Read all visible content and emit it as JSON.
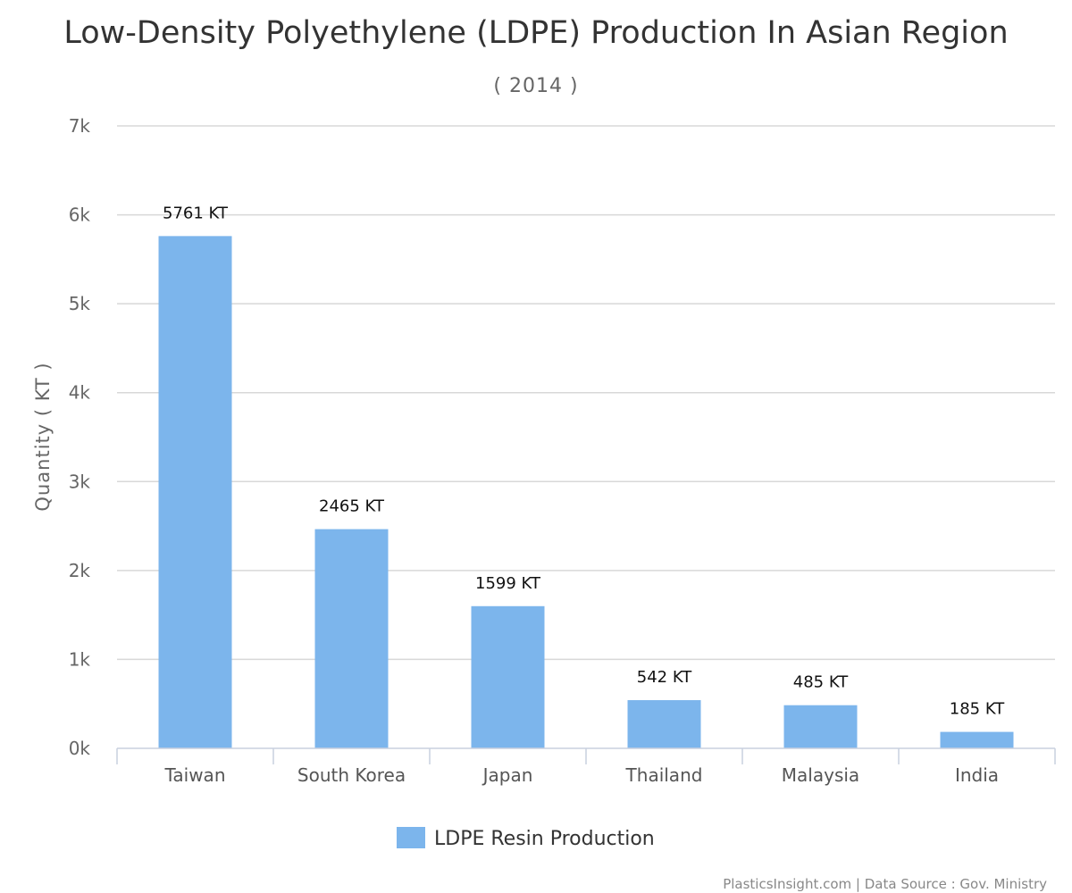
{
  "chart_data": {
    "type": "bar",
    "title": "Low-Density Polyethylene (LDPE) Production In Asian Region",
    "subtitle": "( 2014 )",
    "xlabel": "",
    "ylabel": "Quantity ( KT )",
    "categories": [
      "Taiwan",
      "South Korea",
      "Japan",
      "Thailand",
      "Malaysia",
      "India"
    ],
    "series": [
      {
        "name": "LDPE Resin Production",
        "values": [
          5761,
          2465,
          1599,
          542,
          485,
          185
        ],
        "data_labels": [
          "5761 KT",
          "2465 KT",
          "1599 KT",
          "542 KT",
          "485 KT",
          "185 KT"
        ]
      }
    ],
    "ylim": [
      0,
      7000
    ],
    "yticks": [
      0,
      1000,
      2000,
      3000,
      4000,
      5000,
      6000,
      7000
    ],
    "ytick_labels": [
      "0k",
      "1k",
      "2k",
      "3k",
      "4k",
      "5k",
      "6k",
      "7k"
    ],
    "grid": true,
    "legend": "bottom-center",
    "colors": {
      "bar": "#7cb5ec",
      "grid": "#d8d8d8",
      "axis": "#c8d0df"
    }
  },
  "credits": "PlasticsInsight.com | Data Source : Gov. Ministry"
}
